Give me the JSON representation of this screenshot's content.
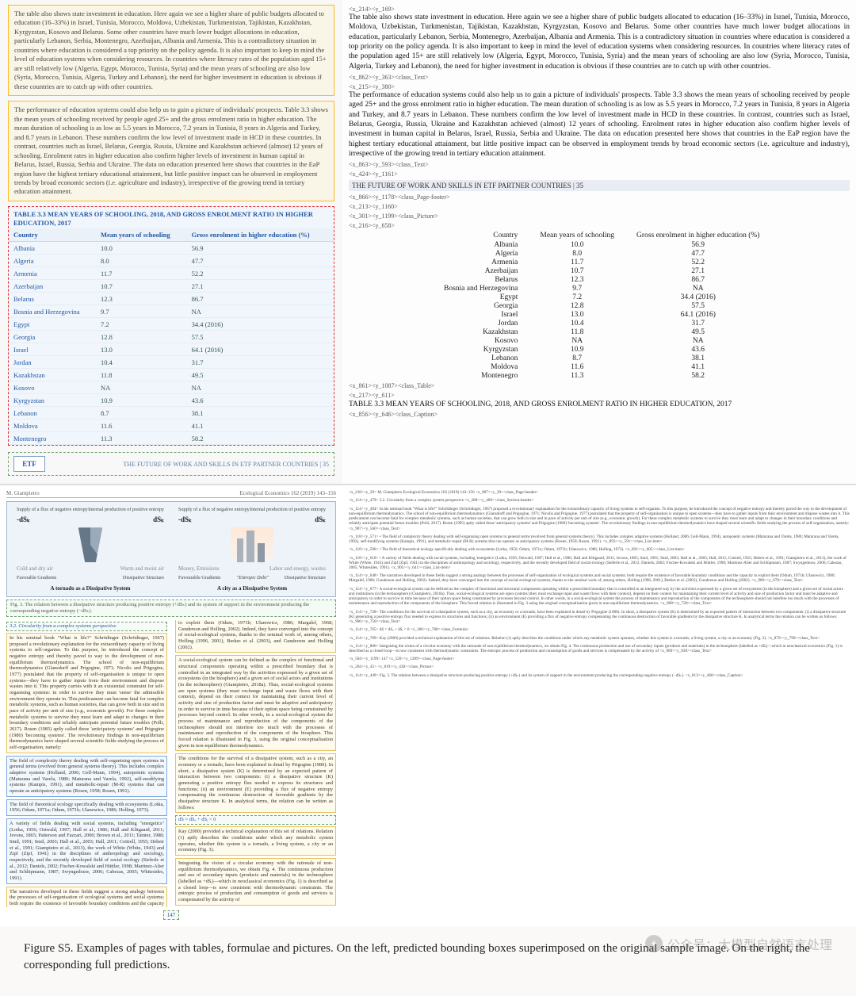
{
  "top": {
    "left_para1": "The table also shows state investment in education. Here again we see a higher share of public budgets allocated to education (16–33%) in Israel, Tunisia, Morocco, Moldova, Uzbekistan, Turkmenistan, Tajikistan, Kazakhstan, Kyrgyzstan, Kosovo and Belarus. Some other countries have much lower budget allocations in education, particularly Lebanon, Serbia, Montenegro, Azerbaijan, Albania and Armenia. This is a contradictory situation in countries where education is considered a top priority on the policy agenda. It is also important to keep in mind the level of education systems when considering resources. In countries where literacy rates of the population aged 15+ are still relatively low (Algeria, Egypt, Morocco, Tunisia, Syria) and the mean years of schooling are also low (Syria, Morocco, Tunisia, Algeria, Turkey and Lebanon), the need for higher investment in education is obvious if these countries are to catch up with other countries.",
    "left_para2": "The performance of education systems could also help us to gain a picture of individuals' prospects. Table 3.3 shows the mean years of schooling received by people aged 25+ and the gross enrolment ratio in higher education. The mean duration of schooling is as low as 5.5 years in Morocco, 7.2 years in Tunisia, 8 years in Algeria and Turkey, and 8.7 years in Lebanon. These numbers confirm the low level of investment made in HCD in these countries. In contrast, countries such as Israel, Belarus, Georgia, Russia, Ukraine and Kazakhstan achieved (almost) 12 years of schooling. Enrolment rates in higher education also confirm higher levels of investment in human capital in Belarus, Israel, Russia, Serbia and Ukraine. The data on education presented here shows that countries in the EaP region have the highest tertiary educational attainment, but little positive impact can be observed in employment trends by broad economic sectors (i.e. agriculture and industry), irrespective of the growing trend in tertiary education attainment.",
    "table_title": "TABLE 3.3 MEAN YEARS OF SCHOOLING, 2018, AND GROSS ENROLMENT RATIO IN HIGHER EDUCATION, 2017",
    "cols": [
      "Country",
      "Mean years of schooling",
      "Gross enrolment in higher education (%)"
    ],
    "rows": [
      [
        "Albania",
        "10.0",
        "56.9"
      ],
      [
        "Algeria",
        "8.0",
        "47.7"
      ],
      [
        "Armenia",
        "11.7",
        "52.2"
      ],
      [
        "Azerbaijan",
        "10.7",
        "27.1"
      ],
      [
        "Belarus",
        "12.3",
        "86.7"
      ],
      [
        "Bosnia and Herzegovina",
        "9.7",
        "NA"
      ],
      [
        "Egypt",
        "7.2",
        "34.4 (2016)"
      ],
      [
        "Georgia",
        "12.8",
        "57.5"
      ],
      [
        "Israel",
        "13.0",
        "64.1 (2016)"
      ],
      [
        "Jordan",
        "10.4",
        "31.7"
      ],
      [
        "Kazakhstan",
        "11.8",
        "49.5"
      ],
      [
        "Kosovo",
        "NA",
        "NA"
      ],
      [
        "Kyrgyzstan",
        "10.9",
        "43.6"
      ],
      [
        "Lebanon",
        "8.7",
        "38.1"
      ],
      [
        "Moldova",
        "11.6",
        "41.1"
      ],
      [
        "Montenegro",
        "11.3",
        "58.2"
      ]
    ],
    "etf": "ETF",
    "page_footer_left": "THE FUTURE OF WORK AND SKILLS IN ETF PARTNER COUNTRIES | 35",
    "r_a1a": "<x_214><y_169>",
    "r_a1b": "<x_862><y_363><class_Text>",
    "r_a2a": "<x_215><y_380>",
    "r_a2b": "<x_863><y_593><class_Text>",
    "r_a3a": "<x_424><y_1161>",
    "r_pf": "THE FUTURE OF WORK AND SKILLS IN ETF PARTNER COUNTRIES | 35",
    "r_a3b": "<x_866><y_1178><class_Page-footer>",
    "r_a4a": "<x_213><y_1160>",
    "r_a4b": "<x_301><y_1199><class_Picture>",
    "r_a5": "<x_216><y_658>",
    "r_a5b": "<x_861><y_1087><class_Table>",
    "r_a6a": "<x_217><y_611>",
    "r_cap": "TABLE 3.3 MEAN YEARS OF SCHOOLING, 2018, AND GROSS ENROLMENT RATIO IN HIGHER EDUCATION, 2017",
    "r_a6b": "<x_856><y_646><class_Caption>"
  },
  "mid": {
    "jh_left": "M. Giampietro",
    "jh_right": "Ecological Economics 162 (2019) 143–156",
    "fig": {
      "sup_l1": "Supply of a flux of\nnegative entropy",
      "sup_l2": "Internal production\nof positive entropy",
      "sup_r1": "Supply of a flux of\nnegative entropy",
      "sup_r2": "Internal production\nof positive entropy",
      "dsL1": "-dSₖ",
      "dsL2": "dSₖ",
      "dsR1": "-dSₖ",
      "dsR2": "dSₖ",
      "arrL1": "Cold and dry air",
      "arrL2": "Warm and moist air",
      "arrR1": "Money, Emissions",
      "arrR2": "Labor and energy, wastes",
      "gradL1": "Favorable\nGradients",
      "gradL2": "Dissipative\nStructure",
      "gradR1": "Favourable\nGradients",
      "gradR2": "Dissipative\nStructure",
      "extloop": "\"Entropic Debt\"",
      "capL": "A tornado as a Dissipative System",
      "capR": "A city as a Dissipative System",
      "fig3": "Fig. 3. The relation between a dissipative structure producing positive entropy (+dSₖ) and its system of support in the environment producing the corresponding negative entropy (−dSₖ)."
    },
    "sec32": "3.2. Circularity from a complex systems perspective",
    "para_a": "In his seminal book \"What is life?\" Schrödinger (Schrödinger, 1967) proposed a revolutionary explanation for the extraordinary capacity of living systems to self-organise. To this purpose, he introduced the concept of negative entropy and thereby paved to way to the development of non-equilibrium thermodynamics. The school of non-equilibrium thermodynamics (Glansdorff and Prigogine, 1971; Nicolis and Prigogine, 1977) postulated that the property of self-organisation is unique to open systems—they have to gather inputs from their environment and dispose wastes into it. This property carries with it an existential constraint for self-organising systems: in order to survive they must 'sense' the admissible environment they operate in. This predicament can become fatal for complex metabolic systems, such as human societies, that can grow both in size and in pace of activity per unit of size (e.g., economic growth). For these complex metabolic systems to survive they must learn and adapt to changes in their boundary conditions and reliably anticipate potential future troubles (Polli, 2017). Rosen (1985) aptly called these 'anticipatory systems' and Prigogine (1980) 'becoming systems'. The revolutionary findings in non-equilibrium thermodynamics have shaped several scientific fields studying the process of self-organisation, namely:",
    "bul1": "The field of complexity theory dealing with self-organising open systems in general terms (evolved from general systems theory). This includes complex adaptive systems (Holland, 2006; Gell-Mann, 1994), autopoietic systems (Maturana and Varela, 1980; Maturana and Varela, 1992), self-modifying systems (Kampis, 1991), and metabolic-repair (M-R) systems that can operate as anticipatory systems (Rosen, 1958; Rosen, 1991).",
    "bul2": "The field of theoretical ecology specifically dealing with ecosystems (Lotka, 1956; Odum, 1971a; Odum, 1971b; Ulanowicz, 1986; Holling, 1973).",
    "bul3": "A variety of fields dealing with social systems, including \"energetics\" (Lotka, 1956; Ostwald, 1907; Hall et al., 1986; Hall and Klitgaard, 2011; Jevons, 1865; Patterson and Fazzari, 2000; Brown et al., 2011; Tainter, 1988; Smil, 1991; Smil, 2003; Hall et al., 2003; Hall, 2011; Cottrell, 1955; Debeir et al., 1991; Giampietro et al., 2013), the work of White (White, 1943) and Zipf (Zipf, 1941) in the disciplines of anthropology and sociology, respectively, and the recently developed field of social ecology (Sieferle et al., 2012; Daniels, 2002; Fischer-Kowalski and Hüttler, 1998; Martinez-Alier and Schlüpmann, 1987; Swyngedouw, 2006; Cabezas, 2005; Whitesides, 1991).",
    "para_b": "The narratives developed in these fields suggest a strong analogy between the processes of self-organisation of ecological systems and social systems; both require the existence of favorable boundary conditions and the capacity to exploit them (Odum, 1971b; Ulanowicz, 1986; Margalef, 1968; Gunderson and Holling, 2002). Indeed, they have converged into the concept of social-ecological systems, thanks to the seminal work of, among others, Holling (1996, 2001), Berkes et al. (2003), and Gunderson and Holling (2002).",
    "para_c": "A social-ecological system can be defined as the complex of functional and structural components operating within a prescribed boundary that is controlled in an integrated way by the activities expressed by a given set of ecosystems (in the biosphere) and a given set of social actors and institutions (in the technosphere) (Giampietro, 2018a). Thus, social-ecological systems are open systems (they must exchange input and waste flows with their context), depend on their context for maintaining their current level of activity and size of production factor and must be adaptive and anticipatory in order to survive in time because of their option space being constrained by processes beyond control. In other words, in a social-ecological system the process of maintenance and reproduction of the components of the technosphere should not interfere too much with the processes of maintenance and reproduction of the components of the biosphere. This forced relation is illustrated in Fig. 3, using the original conceptualisation given in non-equilibrium thermodynamics.",
    "para_d": "The conditions for the survival of a dissipative system, such as a city, an economy or a tornado, have been explained in detail by Prigogine (1980). In short, a dissipative system (K) is determined by an expected pattern of interaction between two components: (i) a dissipative structure (K) generating a positive entropy flux needed to express its structures and functions; (ii) an environment (E) providing a flux of negative entropy compensating the continuous destruction of favorable gradients by the dissipative structure K. In analytical terms, the relation can be written as follows:",
    "eq": "dS = dSₑ + dSᵢ < 0",
    "para_e": "Kay (2000) provided a technical explanation of this set of relations. Relation (1) aptly describes the conditions under which any metabolic system operates, whether this system is a tornado, a living system, a city or an economy (Fig. 3).",
    "para_f": "Integrating the vision of a circular economy with the rationale of non-equilibrium thermodynamics, we obtain Fig. 4. The continuous production and use of secondary inputs (products and materials) in the technosphere (labelled as +dSᵢ)—which in neoclassical economics (Fig. 1) is described as a closed loop—is now consistent with thermodynamic constraints. The entropic process of production and consumption of goods and services is compensated by the activity of",
    "page_no": "147",
    "r_blocks": [
      "<x_218><y_29>\nM. Giampietro Ecological Economics 162 (2019) 143–156\n<x_907><y_39><class_Page-header>",
      "<x_114><y_479>\n3.2. Circularity from a complex system perspective\n<x_308><y_489><class_Section-header>",
      "<x_114><y_494>\nIn his seminal book \"What is life?\" Schrödinger (Schrödinger, 1967) proposed a revolutionary explanation for the extraordinary capacity of living systems to self-organise. To this purpose, he introduced the concept of negative entropy and thereby paved the way to the development of non-equilibrium thermodynamics. The school of non-equilibrium thermodynamics (Glansdorff and Prigogine, 1971; Nicolis and Prigogine, 1977) postulated that the property of self-organisation is unique to open systems—they have to gather inputs from their environment and dispose wastes into it. This predicament can become fatal for complex metabolic systems, such as human societies, that can grow both in size and in pace of activity per unit of size (e.g., economic growth). For these complex metabolic systems to survive they must learn and adapt to changes in their boundary conditions and reliably anticipate potential future troubles (Polli, 2017). Rosen (1985) aptly called these 'anticipatory systems' and Prigogine (1980) 'becoming systems'. The revolutionary findings in non-equilibrium thermodynamics have shaped several scientific fields studying the process of self-organisation, namely:\n<x_907><y_560><class_Text>",
      "<x_118><y_571>\n• The field of complexity theory dealing with self-organising open systems in general terms (evolved from general systems theory). This includes complex adaptive systems (Holland, 2006; Gell-Mann, 1994), autopoietic systems (Maturana and Varela, 1980; Maturana and Varela, 1992), self-modifying systems (Kampis, 1991), and metabolic-repair (M-R) systems that can operate as anticipatory systems (Rosen, 1958; Rosen, 1991).\n<x_893><y_591><class_List-item>",
      "<x_118><y_596>\n• The field of theoretical ecology specifically dealing with ecosystems (Lotka, 1956; Odum, 1971a; Odum, 1971b; Ulanowicz, 1986; Holling, 1973).\n<x_691><y_605><class_List-item>",
      "<x_118><y_610>\n• A variety of fields dealing with social systems, including 'energetics' (Lotka, 1956; Ostwald, 1907; Hall et al., 1986; Hall and Klitgaard, 2011; Jevons, 1865; Smil, 1991; Smil, 2003; Hall et al., 2003; Hall, 2011; Cottrell, 1955; Debeir et al., 1991; Giampietro et al., 2013), the work of White (White, 1943) and Zipf (Zipf, 1941) in the disciplines of anthropology and sociology, respectively, and the recently developed field of social ecology (Sieferle et al., 2012; Daniels, 2002; Fischer-Kowalski and Hüttler, 1998; Martinez-Alier and Schlüpmann, 1987; Swyngedouw, 2006; Cabezas, 2005; Whitesides, 1991).\n<x_905><y_641><class_List-item>",
      "<x_114><y_648>\nThe narratives developed in these fields suggest a strong analogy between the processes of self-organisation of ecological systems and social systems; both require the existence of favorable boundary conditions and the capacity to exploit them (Odum, 1971b; Ulanowicz, 1986; Margalef, 1968; Gunderson and Holling, 2002). Indeed, they have converged into the concept of social-ecological systems, thanks to the seminal work of, among others, Holling (1996, 2001), Berkes et al. (2003), Gunderson and Holling (2002).\n<x_906><y_670><class_Text>",
      "<x_114><y_677>\nA social-ecological system can be defined as the complex of functional and structural components operating within a prescribed boundary that is controlled in an integrated way by the activities expressed by a given set of ecosystems (in the biosphere) and a given set of social actors and institutions (in the technosphere) (Giampietro, 2018a). Thus, social-ecological systems are open systems (they must exchange input and waste flows with their context), depend on their context for maintaining their current level of activity and size of production factor and must be adaptive and anticipatory in order to survive in time because of their option space being constrained by processes beyond control. In other words, in a social-ecological system the process of maintenance and reproduction of the components of the technosphere should not interfere too much with the processes of maintenance and reproduction of the components of the biosphere. This forced relation is illustrated in Fig. 3 using the original conceptualisation given in non-equilibrium thermodynamics.\n<x_908><y_720><class_Text>",
      "<x_114><y_728>\nThe conditions for the survival of a dissipative system, such as a city, an economy or a tornado, have been explained in detail by Prigogine (1980). In short, a dissipative system (K) is determined by an expected pattern of interaction between two components: (i) a dissipative structure (K) generating a positive entropy flux needed to express its structures and functions; (ii) an environment (E) providing a flux of negative entropy compensating the continuous destruction of favorable gradients by the dissipative structure K. In analytical terms the relation can be written as follows:\n<x_906><y_758><class_Text>",
      "<x_114><y_765>\ndS = dSₑ + dSᵢ < 0\n<x_186><y_780><class_Formula>",
      "<x_114><y_789>\nKay (2000) provided a technical explanation of this set of relations. Relation (1) aptly describes the conditions under which any metabolic system operates, whether this system is a tornado, a living system, a city or an economy (Fig. 3).\n<x_879><y_799><class_Text>",
      "<x_114><y_806>\nIntegrating the vision of a circular economy with the rationale of non-equilibrium thermodynamics, we obtain Fig. 4. The continuous production and use of secondary inputs (products and materials) in the technosphere (labelled as +dSᵢ)—which in neoclassical economics (Fig. 1) is described as a closed loop—is now consistent with thermodynamic constraints. The entropic process of production and consumption of goods and services is compensated by the activity of\n<x_906><y_830><class_Text>",
      "<x_504><y_1199>\n147\n<x_520><y_1209><class_Page-footer>",
      "<x_204><y_45>\n<x_819><y_438><class_Picture>",
      "<x_114><y_449>\nFig. 3. The relation between a dissipative structure producing positive entropy (+dSₖ) and its system of support in the environment producing the corresponding negative entropy (−dSₖ).\n<x_813><y_460><class_Caption>"
    ]
  },
  "caption": "Figure S5.  Examples of pages with tables, formulae and pictures. On the left, predicted bounding boxes superimposed on the original sample image. On the right, the corresponding full predictions.",
  "wm_text": "公众号：大模型自然语言处理"
}
